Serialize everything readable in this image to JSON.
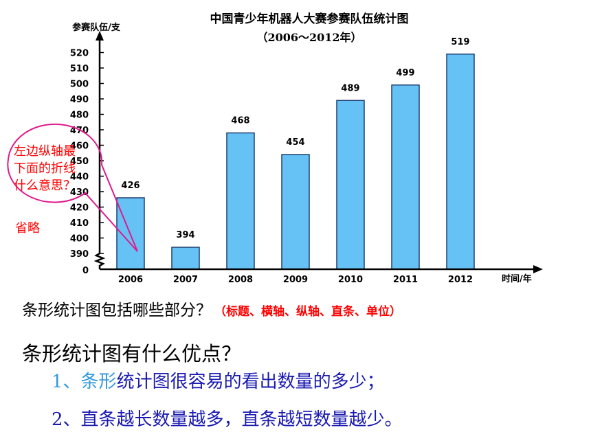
{
  "chart_data": {
    "type": "bar",
    "title": "中国青少年机器人大赛参赛队伍统计图",
    "subtitle": "（2006～2012年）",
    "ylabel": "参赛队伍/支",
    "xlabel": "时间/年",
    "categories": [
      "2006",
      "2007",
      "2008",
      "2009",
      "2010",
      "2011",
      "2012"
    ],
    "values": [
      426,
      394,
      468,
      454,
      489,
      499,
      519
    ],
    "data_labels": [
      "426",
      "394",
      "468",
      "454",
      "489",
      "499",
      "519"
    ],
    "y_zero_label": "0",
    "y_ticks": [
      390,
      400,
      410,
      420,
      430,
      440,
      450,
      460,
      470,
      480,
      490,
      500,
      510,
      520
    ],
    "ylim": [
      385,
      525
    ],
    "axis_break": true,
    "bar_color": "#66c2f5",
    "bar_edge_color": "#1f3f70",
    "grid": false
  },
  "callout": {
    "text_lines": [
      "左边纵轴最",
      "下面的折线",
      "什么意思？"
    ],
    "answer": "省略",
    "color": "#e0188c",
    "text_color": "#ff0000"
  },
  "questions": {
    "q1_text": "条形统计图包括哪些部分？",
    "q1_answer": "（标题、横轴、纵轴、直条、单位）",
    "q2_text": "条形统计图有什么优点？",
    "point1_number": "1、",
    "point1_highlight": "条形",
    "point1_rest": "统计图很容易的看出数量的多少；",
    "point2": "2、直条越长数量越多，直条越短数量越少。"
  }
}
